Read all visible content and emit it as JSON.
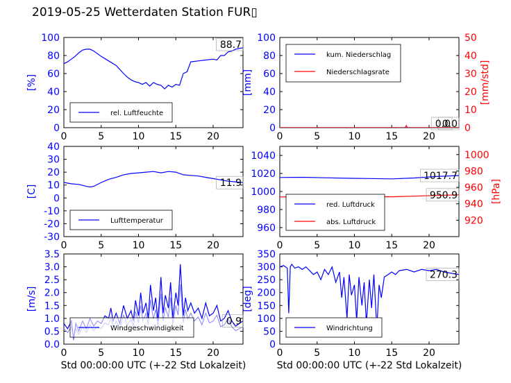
{
  "title": "2019-05-25 Wetterdaten Station FUR▯",
  "colors": {
    "primary": "#0000ff",
    "secondary": "#ff0000",
    "light": "#8080ff"
  },
  "chart_data": [
    {
      "type": "line",
      "ylabel": "[%]",
      "xlim": [
        0,
        24
      ],
      "ylim": [
        0,
        100
      ],
      "xticks": [
        0,
        5,
        10,
        15,
        20
      ],
      "yticks": [
        0,
        20,
        40,
        60,
        80,
        100
      ],
      "legend": "lower-left",
      "series": [
        {
          "name": "rel. Luftfeuchte",
          "color": "#0000ff",
          "x": [
            0,
            0.5,
            1,
            1.5,
            2,
            2.5,
            3,
            3.5,
            4,
            5,
            6,
            7,
            8,
            8.5,
            9,
            9.5,
            10,
            10.5,
            11,
            11.5,
            12,
            12.5,
            13,
            13.5,
            14,
            14.5,
            15,
            15.5,
            16,
            16.5,
            17,
            18,
            19,
            20,
            20.5,
            21,
            21.5,
            22,
            22.5,
            23,
            24
          ],
          "y": [
            71,
            73,
            76,
            79,
            83,
            86,
            87,
            87,
            85,
            79,
            74,
            69,
            60,
            56,
            53,
            51,
            50,
            48,
            50,
            46,
            50,
            48,
            47,
            43,
            47,
            45,
            48,
            47,
            60,
            62,
            73,
            74,
            75,
            76,
            75,
            80,
            80,
            84,
            85,
            87,
            88.7
          ]
        }
      ],
      "last_value_label": "88.7"
    },
    {
      "type": "line",
      "ylabel": "[mm]",
      "ylabel2": "[mm/std]",
      "xlim": [
        0,
        24
      ],
      "ylim": [
        0,
        100
      ],
      "ylim2": [
        0,
        50
      ],
      "xticks": [
        0,
        5,
        10,
        15,
        20
      ],
      "yticks": [
        0,
        20,
        40,
        60,
        80,
        100
      ],
      "yticks2": [
        0,
        10,
        20,
        30,
        40,
        50
      ],
      "legend": "upper-left",
      "series": [
        {
          "name": "kum. Niederschlag",
          "color": "#0000ff",
          "axis": "left",
          "x": [
            0,
            24
          ],
          "y": [
            0,
            0
          ]
        },
        {
          "name": "Niederschlagsrate",
          "color": "#ff0000",
          "axis": "right",
          "x": [
            0,
            16.8,
            16.95,
            17.1,
            24
          ],
          "y": [
            0,
            0,
            1.2,
            0,
            0
          ]
        }
      ],
      "last_value_labels": [
        "0.0",
        "0.0"
      ]
    },
    {
      "type": "line",
      "ylabel": "[C]",
      "xlim": [
        0,
        24
      ],
      "ylim": [
        -30,
        40
      ],
      "xticks": [
        0,
        5,
        10,
        15,
        20
      ],
      "yticks": [
        -30,
        -20,
        -10,
        0,
        10,
        20,
        30,
        40
      ],
      "legend": "lower-left",
      "series": [
        {
          "name": "Lufttemperatur",
          "color": "#0000ff",
          "x": [
            0,
            1,
            2,
            3,
            3.5,
            4,
            5,
            6,
            7,
            8,
            9,
            10,
            11,
            12,
            13,
            14,
            15,
            16,
            17,
            18,
            19,
            20,
            21,
            22,
            23,
            24
          ],
          "y": [
            12,
            11,
            10.5,
            9,
            8.5,
            9,
            12,
            14.5,
            16,
            18,
            19,
            19.5,
            20,
            20.5,
            19.5,
            20.5,
            20,
            18,
            17.5,
            17,
            16,
            15,
            14,
            13,
            12.5,
            11.9
          ]
        }
      ],
      "last_value_label": "11.9"
    },
    {
      "type": "line",
      "ylabel": "[hPa]",
      "xlim": [
        0,
        24
      ],
      "ylim": [
        950,
        1050
      ],
      "ylim2": [
        900,
        1010
      ],
      "xticks": [
        0,
        5,
        10,
        15,
        20
      ],
      "yticks": [
        960,
        980,
        1000,
        1020,
        1040
      ],
      "yticks2": [
        920,
        940,
        960,
        980,
        1000
      ],
      "legend": "lower-left",
      "series": [
        {
          "name": "red. Luftdruck",
          "color": "#0000ff",
          "axis": "left",
          "x": [
            0,
            3,
            6,
            9,
            12,
            15,
            18,
            21,
            24
          ],
          "y": [
            1015.5,
            1015.8,
            1015.2,
            1014.7,
            1014.4,
            1014.0,
            1015.0,
            1016.6,
            1017.7
          ]
        },
        {
          "name": "abs. Luftdruck",
          "color": "#ff0000",
          "axis": "right",
          "x": [
            0,
            3,
            6,
            9,
            12,
            15,
            18,
            21,
            24
          ],
          "y": [
            948.4,
            948.6,
            948.8,
            948.8,
            948.7,
            948.6,
            949.3,
            950.2,
            950.9
          ]
        }
      ],
      "last_value_labels": [
        "1017.7",
        "950.9"
      ]
    },
    {
      "type": "line",
      "ylabel": "[m/s]",
      "xlim": [
        0,
        24
      ],
      "ylim": [
        0,
        3.5
      ],
      "xticks": [
        0,
        5,
        10,
        15,
        20
      ],
      "yticks": [
        0.0,
        0.5,
        1.0,
        1.5,
        2.0,
        2.5,
        3.0,
        3.5
      ],
      "legend": "lower-left",
      "series": [
        {
          "name": "Windgeschwindigkeit",
          "color": "#0000ff",
          "x": [
            0,
            0.5,
            1,
            1.3,
            1.6,
            2,
            2.5,
            3,
            3.5,
            4,
            4.5,
            5,
            5.5,
            6,
            6.3,
            6.6,
            7,
            7.5,
            8,
            8.5,
            9,
            9.3,
            9.6,
            10,
            10.3,
            10.6,
            11,
            11.3,
            11.6,
            12,
            12.3,
            12.6,
            13,
            13.3,
            13.6,
            14,
            14.3,
            14.6,
            15,
            15.3,
            15.6,
            16,
            16.3,
            16.6,
            17,
            17.5,
            18,
            18.5,
            19,
            19.5,
            20,
            20.5,
            21,
            21.5,
            22,
            22.5,
            23,
            23.5,
            24
          ],
          "y": [
            0.8,
            0.6,
            0.9,
            0.2,
            0.8,
            0.5,
            0.9,
            0.6,
            1.0,
            0.7,
            0.9,
            0.8,
            1.1,
            1.0,
            1.4,
            0.9,
            1.2,
            0.8,
            1.5,
            1.0,
            1.3,
            0.9,
            1.7,
            1.1,
            2.0,
            1.2,
            1.6,
            1.0,
            2.3,
            1.3,
            1.8,
            0.9,
            2.6,
            1.2,
            1.9,
            1.4,
            2.4,
            1.0,
            2.0,
            1.5,
            3.1,
            1.1,
            1.8,
            1.3,
            1.6,
            1.2,
            1.4,
            1.0,
            1.6,
            1.1,
            1.2,
            1.5,
            0.9,
            1.0,
            1.3,
            0.9,
            0.7,
            0.8,
            0.9
          ]
        }
      ],
      "last_value_label": "0.9"
    },
    {
      "type": "line",
      "ylabel": "[deg]",
      "xlim": [
        0,
        24
      ],
      "ylim": [
        0,
        350
      ],
      "xticks": [
        0,
        5,
        10,
        15,
        20
      ],
      "yticks": [
        0,
        50,
        100,
        150,
        200,
        250,
        300,
        350
      ],
      "legend": "lower-left",
      "series": [
        {
          "name": "Windrichtung",
          "color": "#0000ff",
          "x": [
            0,
            0.5,
            1,
            1.2,
            1.4,
            1.6,
            2,
            2.5,
            3,
            3.5,
            4,
            4.5,
            5,
            5.5,
            6,
            6.5,
            7,
            7.5,
            8,
            8.3,
            8.6,
            9,
            9.3,
            9.6,
            10,
            10.3,
            10.6,
            11,
            11.3,
            11.6,
            12,
            12.3,
            12.6,
            13,
            13.3,
            13.6,
            14,
            14.5,
            15,
            15.5,
            16,
            17,
            18,
            19,
            20,
            21,
            22,
            23,
            24
          ],
          "y": [
            300,
            305,
            295,
            120,
            300,
            310,
            295,
            300,
            290,
            300,
            285,
            270,
            280,
            250,
            290,
            270,
            300,
            240,
            280,
            180,
            260,
            100,
            270,
            190,
            230,
            90,
            260,
            150,
            240,
            80,
            250,
            140,
            270,
            60,
            230,
            180,
            260,
            270,
            280,
            270,
            285,
            290,
            280,
            290,
            285,
            290,
            280,
            275,
            270.3
          ]
        }
      ],
      "last_value_label": "270.3"
    }
  ],
  "xlabel": "Std 00:00:00 UTC (+-22 Std Lokalzeit)"
}
